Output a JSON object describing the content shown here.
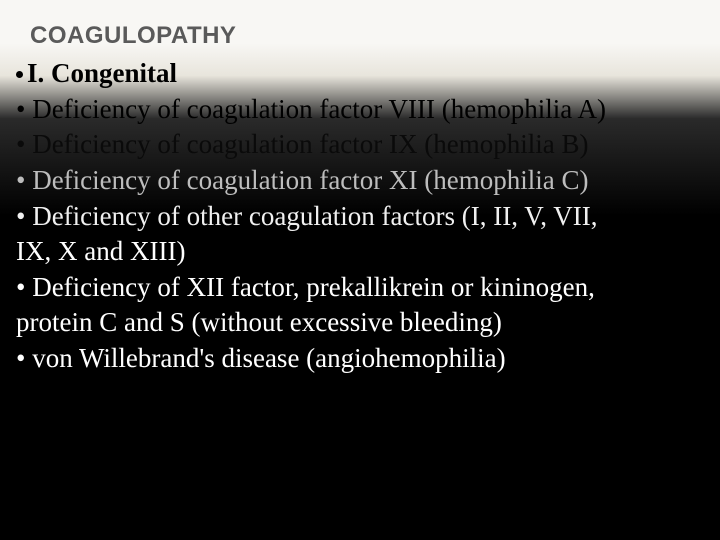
{
  "slide": {
    "title": "COAGULOPATHY",
    "title_fontsize": 24,
    "title_color": "#5a5a5a",
    "content_fontsize": 27,
    "background_gradient": [
      "#f8f7f4",
      "#f8f7f4",
      "#e8e5dc",
      "#2a2a2a",
      "#000000",
      "#000000"
    ],
    "lines": [
      {
        "text": "I. Congenital",
        "bold": true,
        "bullet": "dot",
        "text_color": "#000000"
      },
      {
        "text": "Deficiency of coagulation factor VIII (hemophilia A)",
        "bold": false,
        "bullet": "bullet",
        "text_color": "#000000"
      },
      {
        "text": "Deficiency of coagulation factor IX (hemophilia B)",
        "bold": false,
        "bullet": "bullet",
        "text_color": "#0a0a0a"
      },
      {
        "text": "Deficiency of coagulation factor XI (hemophilia C)",
        "bold": false,
        "bullet": "bullet",
        "text_color": "#bdbdbd"
      },
      {
        "text": "Deficiency of other coagulation factors (I, II, V, VII,",
        "bold": false,
        "bullet": "bullet",
        "text_color": "#f0f0f0"
      },
      {
        "text": "IX, X and XIII)",
        "bold": false,
        "bullet": "none",
        "text_color": "#ffffff"
      },
      {
        "text": "Deficiency of XII factor, prekallikrein or kininogen,",
        "bold": false,
        "bullet": "bullet",
        "text_color": "#ffffff"
      },
      {
        "text": "protein C and S (without excessive bleeding)",
        "bold": false,
        "bullet": "none",
        "text_color": "#ffffff"
      },
      {
        "text": "von Willebrand's disease (angiohemophilia)",
        "bold": false,
        "bullet": "bullet",
        "text_color": "#ffffff"
      }
    ]
  }
}
